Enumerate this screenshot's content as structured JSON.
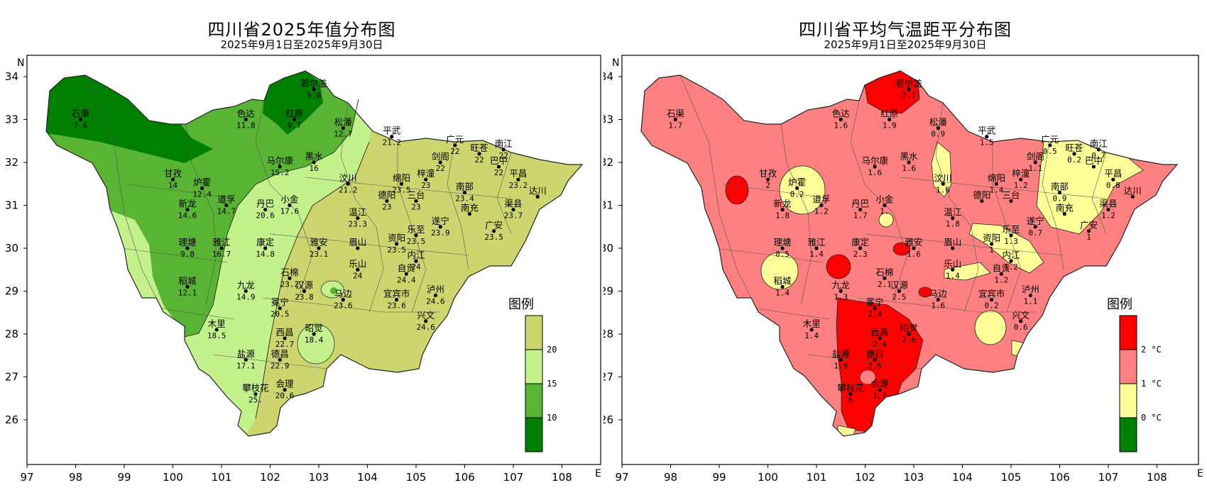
{
  "maps": [
    {
      "title": "四川省2025年值分布图",
      "subtitle": "2025年9月1日至2025年9月30日",
      "axis": {
        "north": "N",
        "east": "E"
      },
      "legend": {
        "title": "图例",
        "labels": [
          "20",
          "15",
          "10"
        ],
        "colors": [
          "#cdd56f",
          "#c3f18c",
          "#58b432",
          "#008000"
        ]
      },
      "stations": [
        {
          "name": "石渠",
          "value": "7.6",
          "lon": 98.1,
          "lat": 33.0
        },
        {
          "name": "色达",
          "value": "11.8",
          "lon": 101.5,
          "lat": 33.0
        },
        {
          "name": "红原",
          "value": "9.7",
          "lon": 102.5,
          "lat": 33.0
        },
        {
          "name": "若尔盖",
          "value": "9.8",
          "lon": 102.9,
          "lat": 33.7
        },
        {
          "name": "松潘",
          "value": "12.7",
          "lon": 103.5,
          "lat": 32.8
        },
        {
          "name": "平武",
          "value": "21.2",
          "lon": 104.5,
          "lat": 32.6
        },
        {
          "name": "广元",
          "value": "22",
          "lon": 105.8,
          "lat": 32.4
        },
        {
          "name": "旺苍",
          "value": "22",
          "lon": 106.3,
          "lat": 32.2
        },
        {
          "name": "南江",
          "value": "22",
          "lon": 106.8,
          "lat": 32.3
        },
        {
          "name": "马尔康",
          "value": "15.2",
          "lon": 102.2,
          "lat": 31.9
        },
        {
          "name": "黑水",
          "value": "16",
          "lon": 102.9,
          "lat": 32.0
        },
        {
          "name": "剑阁",
          "value": "22",
          "lon": 105.5,
          "lat": 32.0
        },
        {
          "name": "巴中",
          "value": "22",
          "lon": 106.7,
          "lat": 31.9
        },
        {
          "name": "甘孜",
          "value": "14",
          "lon": 100.0,
          "lat": 31.6
        },
        {
          "name": "炉霍",
          "value": "12.4",
          "lon": 100.6,
          "lat": 31.4
        },
        {
          "name": "汶川",
          "value": "21.2",
          "lon": 103.6,
          "lat": 31.5
        },
        {
          "name": "梓潼",
          "value": "23",
          "lon": 105.2,
          "lat": 31.6
        },
        {
          "name": "绵阳",
          "value": "23.5",
          "lon": 104.7,
          "lat": 31.5
        },
        {
          "name": "平昌",
          "value": "23.2",
          "lon": 107.1,
          "lat": 31.6
        },
        {
          "name": "达川",
          "value": "",
          "lon": 107.5,
          "lat": 31.2
        },
        {
          "name": "道孚",
          "value": "14.7",
          "lon": 101.1,
          "lat": 31.0
        },
        {
          "name": "新龙",
          "value": "14.6",
          "lon": 100.3,
          "lat": 30.9
        },
        {
          "name": "丹巴",
          "value": "20.6",
          "lon": 101.9,
          "lat": 30.9
        },
        {
          "name": "小金",
          "value": "17.6",
          "lon": 102.4,
          "lat": 31.0
        },
        {
          "name": "德阳",
          "value": "23",
          "lon": 104.4,
          "lat": 31.1
        },
        {
          "name": "三台",
          "value": "23",
          "lon": 105.0,
          "lat": 31.1
        },
        {
          "name": "南部",
          "value": "23.4",
          "lon": 106.0,
          "lat": 31.3
        },
        {
          "name": "南充",
          "value": "",
          "lon": 106.1,
          "lat": 30.8
        },
        {
          "name": "渠县",
          "value": "23.7",
          "lon": 107.0,
          "lat": 30.9
        },
        {
          "name": "温江",
          "value": "23.3",
          "lon": 103.8,
          "lat": 30.7
        },
        {
          "name": "遂宁",
          "value": "23.9",
          "lon": 105.5,
          "lat": 30.5
        },
        {
          "name": "广安",
          "value": "23.5",
          "lon": 106.6,
          "lat": 30.4
        },
        {
          "name": "理塘",
          "value": "9.8",
          "lon": 100.3,
          "lat": 30.0
        },
        {
          "name": "雅江",
          "value": "16.7",
          "lon": 101.0,
          "lat": 30.0
        },
        {
          "name": "康定",
          "value": "14.8",
          "lon": 101.9,
          "lat": 30.0
        },
        {
          "name": "雅安",
          "value": "23.1",
          "lon": 103.0,
          "lat": 30.0
        },
        {
          "name": "眉山",
          "value": "",
          "lon": 103.8,
          "lat": 30.0
        },
        {
          "name": "资阳",
          "value": "23.5",
          "lon": 104.6,
          "lat": 30.1
        },
        {
          "name": "乐至",
          "value": "23.5",
          "lon": 105.0,
          "lat": 30.3
        },
        {
          "name": "内江",
          "value": "24",
          "lon": 105.0,
          "lat": 29.7
        },
        {
          "name": "乐山",
          "value": "24",
          "lon": 103.8,
          "lat": 29.5
        },
        {
          "name": "石棉",
          "value": "23.2",
          "lon": 102.4,
          "lat": 29.3
        },
        {
          "name": "汉源",
          "value": "23.8",
          "lon": 102.7,
          "lat": 29.0
        },
        {
          "name": "稻城",
          "value": "12.1",
          "lon": 100.3,
          "lat": 29.1
        },
        {
          "name": "九龙",
          "value": "14.9",
          "lon": 101.5,
          "lat": 29.0
        },
        {
          "name": "自贡",
          "value": "24.4",
          "lon": 104.8,
          "lat": 29.4
        },
        {
          "name": "马边",
          "value": "23.6",
          "lon": 103.5,
          "lat": 28.8
        },
        {
          "name": "宜宾市",
          "value": "23.6",
          "lon": 104.6,
          "lat": 28.8
        },
        {
          "name": "泸州",
          "value": "24.6",
          "lon": 105.4,
          "lat": 28.9
        },
        {
          "name": "冕宁",
          "value": "20.5",
          "lon": 102.2,
          "lat": 28.6
        },
        {
          "name": "兴文",
          "value": "24.6",
          "lon": 105.2,
          "lat": 28.3
        },
        {
          "name": "木里",
          "value": "18.5",
          "lon": 100.9,
          "lat": 28.1
        },
        {
          "name": "西昌",
          "value": "22.7",
          "lon": 102.3,
          "lat": 27.9
        },
        {
          "name": "昭觉",
          "value": "18.4",
          "lon": 102.9,
          "lat": 28.0
        },
        {
          "name": "盐源",
          "value": "17.1",
          "lon": 101.5,
          "lat": 27.4
        },
        {
          "name": "德昌",
          "value": "22.9",
          "lon": 102.2,
          "lat": 27.4
        },
        {
          "name": "会理",
          "value": "20.6",
          "lon": 102.3,
          "lat": 26.7
        },
        {
          "name": "攀枝花",
          "value": "25.",
          "lon": 101.7,
          "lat": 26.6
        }
      ]
    },
    {
      "title": "四川省平均气温距平分布图",
      "subtitle": "2025年9月1日至2025年9月30日",
      "axis": {
        "north": "N",
        "east": "E"
      },
      "legend": {
        "title": "图例",
        "labels": [
          "2 °C",
          "1 °C",
          "0 °C"
        ],
        "colors": [
          "#ff0000",
          "#ff8080",
          "#ffff99",
          "#008000"
        ]
      },
      "stations": [
        {
          "name": "石渠",
          "value": "1.7",
          "lon": 98.1,
          "lat": 33.0
        },
        {
          "name": "色达",
          "value": "1.6",
          "lon": 101.5,
          "lat": 33.0
        },
        {
          "name": "红原",
          "value": "1.9",
          "lon": 102.5,
          "lat": 33.0
        },
        {
          "name": "若尔盖",
          "value": "2.1",
          "lon": 102.9,
          "lat": 33.7
        },
        {
          "name": "松潘",
          "value": "0.9",
          "lon": 103.5,
          "lat": 32.8
        },
        {
          "name": "平武",
          "value": "1.5",
          "lon": 104.5,
          "lat": 32.6
        },
        {
          "name": "广元",
          "value": "0.5",
          "lon": 105.8,
          "lat": 32.4
        },
        {
          "name": "旺苍",
          "value": "0.2",
          "lon": 106.3,
          "lat": 32.2
        },
        {
          "name": "南江",
          "value": "0.7",
          "lon": 106.8,
          "lat": 32.3
        },
        {
          "name": "马尔康",
          "value": "1.6",
          "lon": 102.2,
          "lat": 31.9
        },
        {
          "name": "黑水",
          "value": "1.6",
          "lon": 102.9,
          "lat": 32.0
        },
        {
          "name": "剑阁",
          "value": "1.1",
          "lon": 105.5,
          "lat": 32.0
        },
        {
          "name": "巴中",
          "value": "",
          "lon": 106.7,
          "lat": 31.9
        },
        {
          "name": "甘孜",
          "value": "2",
          "lon": 100.0,
          "lat": 31.6
        },
        {
          "name": "炉霍",
          "value": "0.2",
          "lon": 100.6,
          "lat": 31.4
        },
        {
          "name": "汶川",
          "value": "1.6",
          "lon": 103.6,
          "lat": 31.5
        },
        {
          "name": "梓潼",
          "value": "1.2",
          "lon": 105.2,
          "lat": 31.6
        },
        {
          "name": "绵阳",
          "value": "1.4",
          "lon": 104.7,
          "lat": 31.5
        },
        {
          "name": "平昌",
          "value": "0.8",
          "lon": 107.1,
          "lat": 31.6
        },
        {
          "name": "达川",
          "value": "",
          "lon": 107.5,
          "lat": 31.2
        },
        {
          "name": "道孚",
          "value": "1.2",
          "lon": 101.1,
          "lat": 31.0
        },
        {
          "name": "新龙",
          "value": "1.8",
          "lon": 100.3,
          "lat": 30.9
        },
        {
          "name": "丹巴",
          "value": "1.7",
          "lon": 101.9,
          "lat": 30.9
        },
        {
          "name": "小金",
          "value": "1.",
          "lon": 102.4,
          "lat": 31.0
        },
        {
          "name": "德阳",
          "value": "",
          "lon": 104.4,
          "lat": 31.1
        },
        {
          "name": "三台",
          "value": "",
          "lon": 105.0,
          "lat": 31.1
        },
        {
          "name": "南部",
          "value": "0.9",
          "lon": 106.0,
          "lat": 31.3
        },
        {
          "name": "南充",
          "value": "",
          "lon": 106.1,
          "lat": 30.8
        },
        {
          "name": "渠县",
          "value": "1.2",
          "lon": 107.0,
          "lat": 30.9
        },
        {
          "name": "温江",
          "value": "1.8",
          "lon": 103.8,
          "lat": 30.7
        },
        {
          "name": "遂宁",
          "value": "0.7",
          "lon": 105.5,
          "lat": 30.5
        },
        {
          "name": "广安",
          "value": "1",
          "lon": 106.6,
          "lat": 30.4
        },
        {
          "name": "理塘",
          "value": "0.5",
          "lon": 100.3,
          "lat": 30.0
        },
        {
          "name": "雅江",
          "value": "1.4",
          "lon": 101.0,
          "lat": 30.0
        },
        {
          "name": "康定",
          "value": "2.3",
          "lon": 101.9,
          "lat": 30.0
        },
        {
          "name": "雅安",
          "value": "1.6",
          "lon": 103.0,
          "lat": 30.0
        },
        {
          "name": "眉山",
          "value": "",
          "lon": 103.8,
          "lat": 30.0
        },
        {
          "name": "资阳",
          "value": "1",
          "lon": 104.6,
          "lat": 30.1
        },
        {
          "name": "乐至",
          "value": "1.3",
          "lon": 105.0,
          "lat": 30.3
        },
        {
          "name": "内江",
          "value": "1.2",
          "lon": 105.0,
          "lat": 29.7
        },
        {
          "name": "乐山",
          "value": "1.4",
          "lon": 103.8,
          "lat": 29.5
        },
        {
          "name": "石棉",
          "value": "2.1",
          "lon": 102.4,
          "lat": 29.3
        },
        {
          "name": "汉源",
          "value": "2.5",
          "lon": 102.7,
          "lat": 29.0
        },
        {
          "name": "稻城",
          "value": "1.4",
          "lon": 100.3,
          "lat": 29.1
        },
        {
          "name": "九龙",
          "value": "1.3",
          "lon": 101.5,
          "lat": 29.0
        },
        {
          "name": "自贡",
          "value": "1.2",
          "lon": 104.8,
          "lat": 29.4
        },
        {
          "name": "马边",
          "value": "1.6",
          "lon": 103.5,
          "lat": 28.8
        },
        {
          "name": "宜宾市",
          "value": "0.2",
          "lon": 104.6,
          "lat": 28.8
        },
        {
          "name": "泸州",
          "value": "1.1",
          "lon": 105.4,
          "lat": 28.9
        },
        {
          "name": "冕宁",
          "value": "2.4",
          "lon": 102.2,
          "lat": 28.6
        },
        {
          "name": "兴文",
          "value": "0.6",
          "lon": 105.2,
          "lat": 28.3
        },
        {
          "name": "木里",
          "value": "1.4",
          "lon": 100.9,
          "lat": 28.1
        },
        {
          "name": "西昌",
          "value": "2.4",
          "lon": 102.3,
          "lat": 27.9
        },
        {
          "name": "昭觉",
          "value": "2.6",
          "lon": 102.9,
          "lat": 28.0
        },
        {
          "name": "盐源",
          "value": "1.9",
          "lon": 101.5,
          "lat": 27.4
        },
        {
          "name": "德昌",
          "value": "2.5",
          "lon": 102.2,
          "lat": 27.4
        },
        {
          "name": "会理",
          "value": "1.7",
          "lon": 102.3,
          "lat": 26.7
        },
        {
          "name": "攀枝花",
          "value": "6",
          "lon": 101.7,
          "lat": 26.6
        }
      ]
    }
  ]
}
